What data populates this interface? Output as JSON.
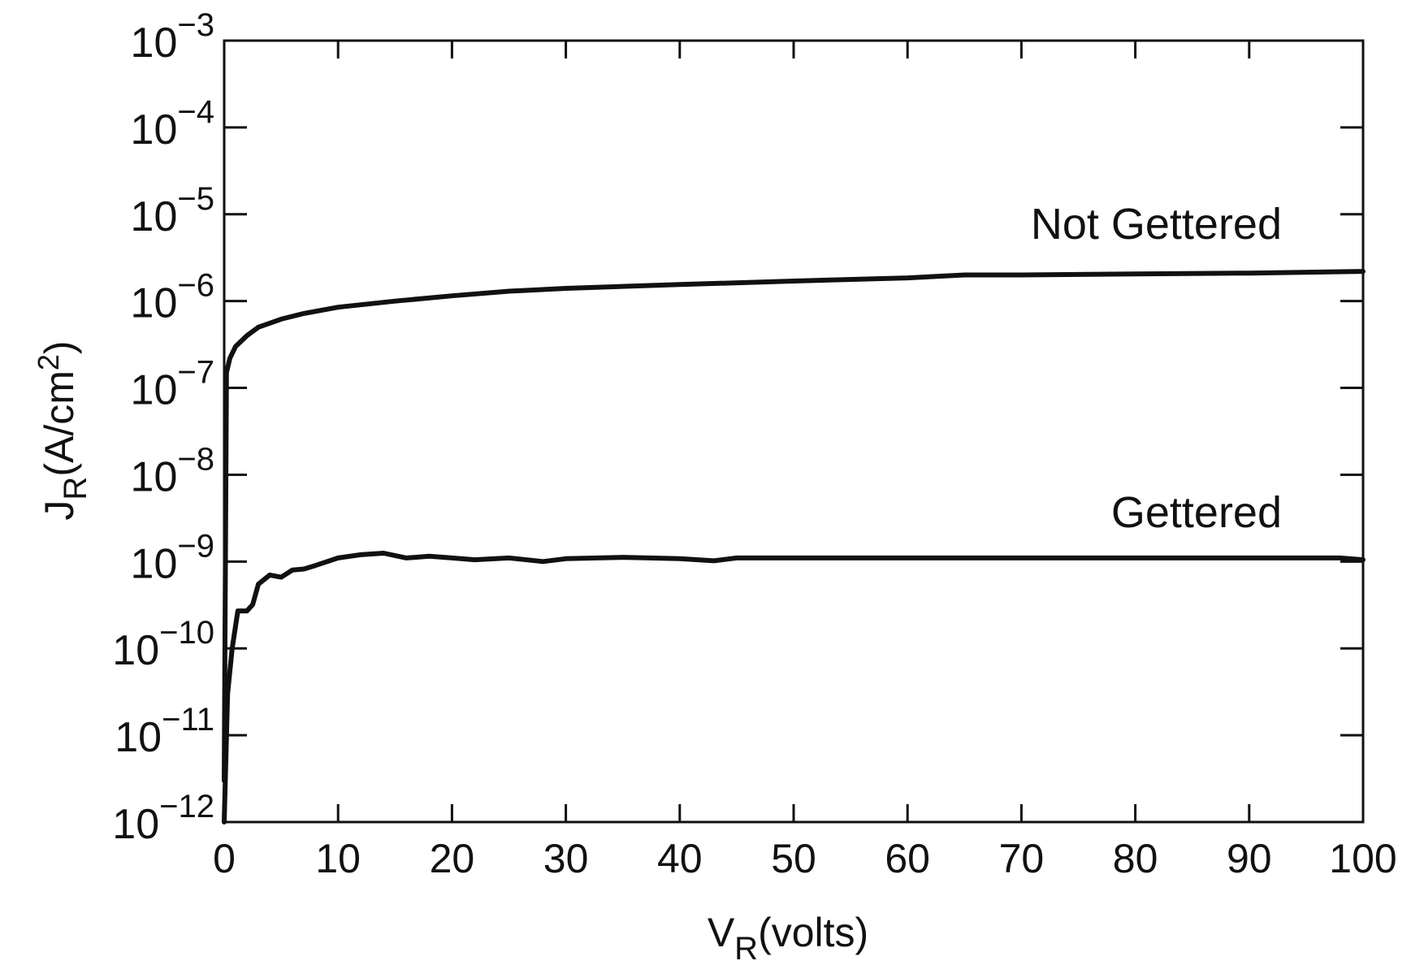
{
  "chart_data": {
    "type": "line",
    "title": "",
    "xlabel": {
      "main": "V",
      "sub": "R",
      "rest": "(volts)"
    },
    "ylabel": {
      "main": "J",
      "sub": "R",
      "rest": "(A/cm",
      "sup": "2",
      "close": ")"
    },
    "xlim": [
      0,
      100
    ],
    "ylim_log10": [
      -12,
      -3
    ],
    "y_scale": "log",
    "grid": false,
    "x_ticks": [
      0,
      10,
      20,
      30,
      40,
      50,
      60,
      70,
      80,
      90,
      100
    ],
    "x_tick_labels": [
      "0",
      "10",
      "20",
      "30",
      "40",
      "50",
      "60",
      "70",
      "80",
      "90",
      "100"
    ],
    "y_ticks": [
      {
        "exp": -3,
        "base": "10",
        "sup": "−3"
      },
      {
        "exp": -4,
        "base": "10",
        "sup": "−4"
      },
      {
        "exp": -5,
        "base": "10",
        "sup": "−5"
      },
      {
        "exp": -6,
        "base": "10",
        "sup": "−6"
      },
      {
        "exp": -7,
        "base": "10",
        "sup": "−7"
      },
      {
        "exp": -8,
        "base": "10",
        "sup": "−8"
      },
      {
        "exp": -9,
        "base": "10",
        "sup": "−9"
      },
      {
        "exp": -10,
        "base": "10",
        "sup": "−10"
      },
      {
        "exp": -11,
        "base": "10",
        "sup": "−11"
      },
      {
        "exp": -12,
        "base": "10",
        "sup": "−12"
      }
    ],
    "series": [
      {
        "name": "Not Gettered",
        "x": [
          0,
          0.2,
          0.5,
          1,
          2,
          3,
          5,
          7,
          10,
          15,
          20,
          25,
          30,
          40,
          50,
          60,
          65,
          70,
          80,
          90,
          100
        ],
        "y": [
          3e-12,
          1.5e-07,
          2.2e-07,
          3e-07,
          4e-07,
          5e-07,
          6.2e-07,
          7.2e-07,
          8.5e-07,
          1e-06,
          1.15e-06,
          1.3e-06,
          1.4e-06,
          1.55e-06,
          1.7e-06,
          1.85e-06,
          2e-06,
          2e-06,
          2.05e-06,
          2.1e-06,
          2.2e-06
        ]
      },
      {
        "name": "Gettered",
        "x": [
          0,
          0.3,
          0.7,
          1.2,
          2,
          2.5,
          3,
          4,
          5,
          6,
          7,
          8,
          10,
          12,
          14,
          16,
          18,
          20,
          22,
          25,
          28,
          30,
          35,
          40,
          43,
          45,
          50,
          60,
          70,
          80,
          90,
          98,
          100
        ],
        "y": [
          1e-12,
          3e-11,
          1e-10,
          2.7e-10,
          2.7e-10,
          3.2e-10,
          5.5e-10,
          7e-10,
          6.6e-10,
          8e-10,
          8.2e-10,
          9e-10,
          1.1e-09,
          1.2e-09,
          1.25e-09,
          1.1e-09,
          1.15e-09,
          1.1e-09,
          1.05e-09,
          1.1e-09,
          1e-09,
          1.08e-09,
          1.12e-09,
          1.08e-09,
          1.02e-09,
          1.1e-09,
          1.1e-09,
          1.1e-09,
          1.1e-09,
          1.1e-09,
          1.1e-09,
          1.1e-09,
          1.05e-09
        ]
      }
    ],
    "annotations": [
      {
        "text": "Not Gettered",
        "series": "Not Gettered"
      },
      {
        "text": "Gettered",
        "series": "Gettered"
      }
    ],
    "colors": {
      "line": "#111111",
      "axes": "#111111",
      "background": "#ffffff"
    }
  }
}
